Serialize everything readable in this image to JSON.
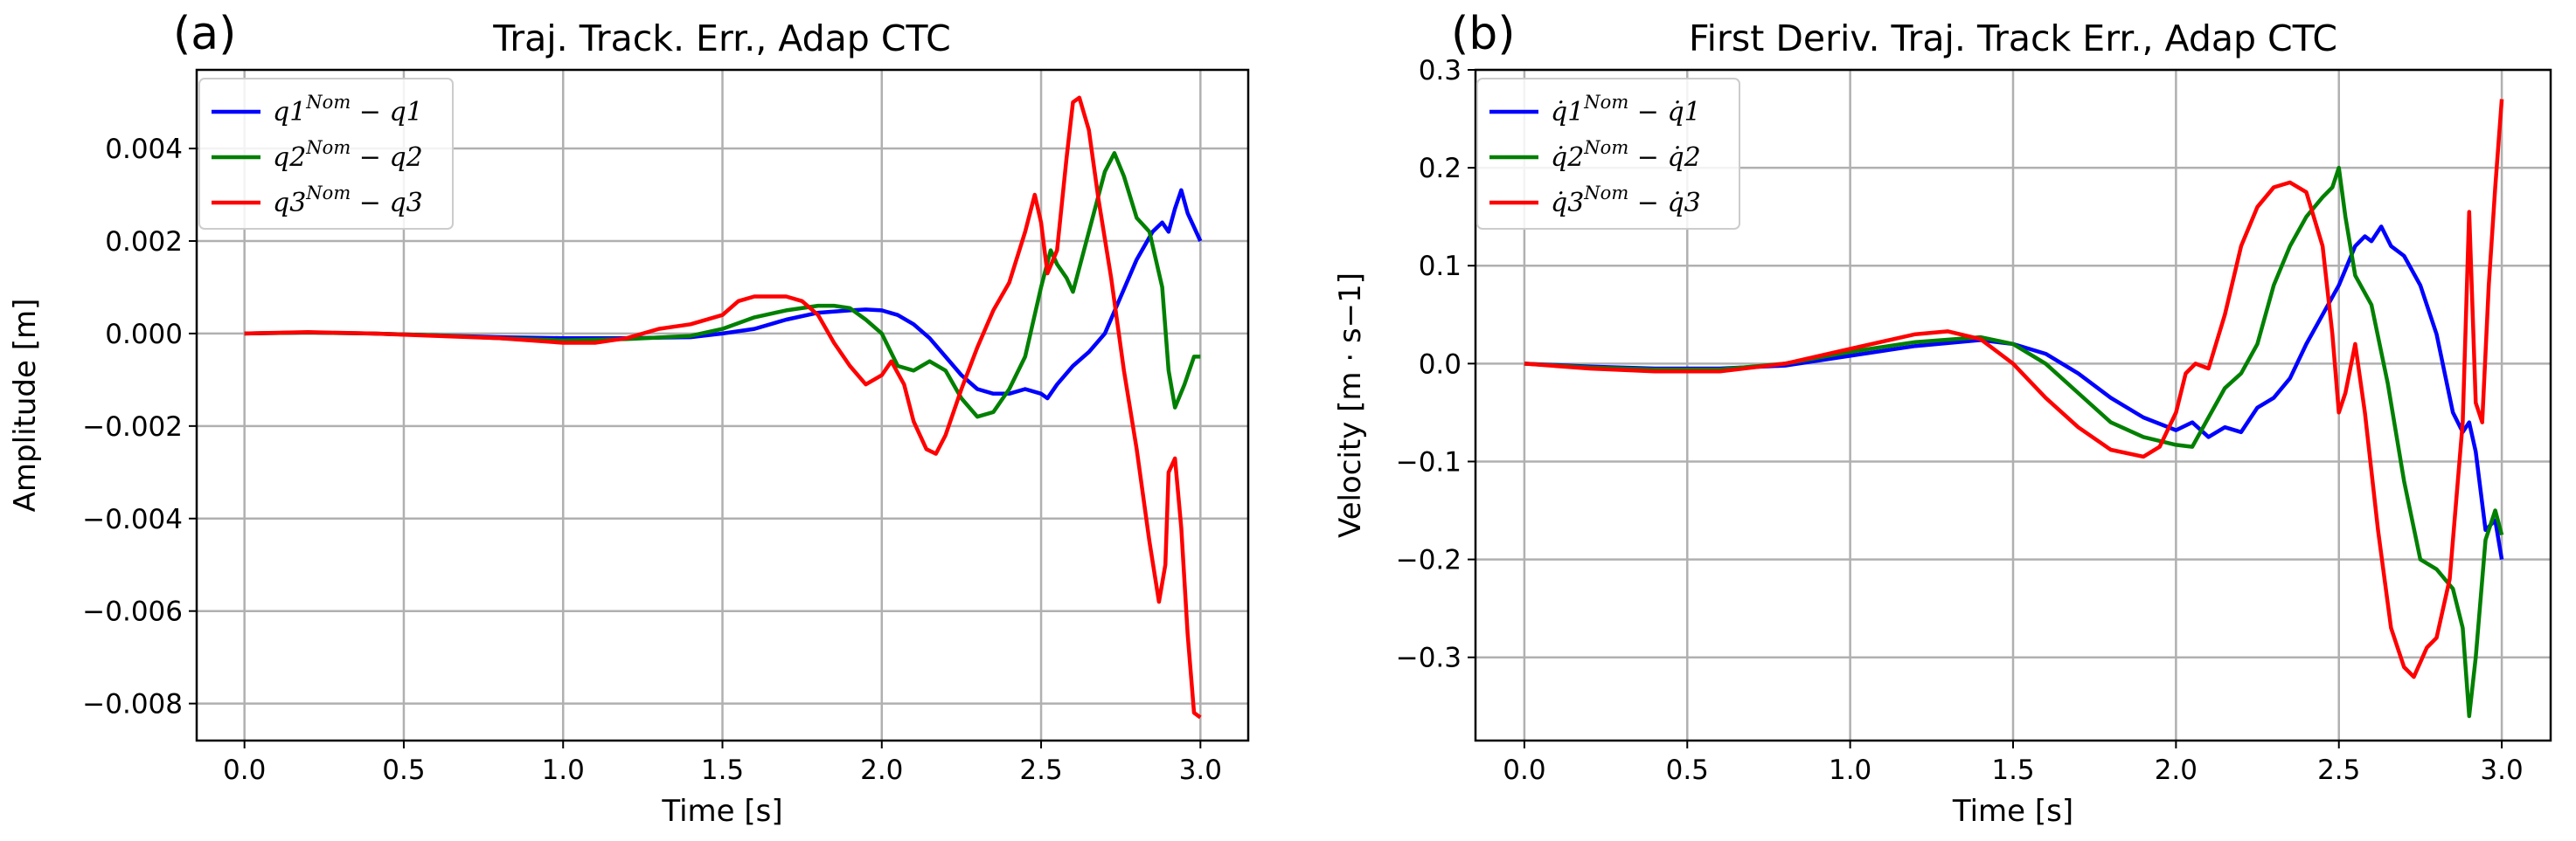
{
  "chart_data": [
    {
      "type": "line",
      "panel_label": "(a)",
      "title": "Traj. Track. Err., Adap  CTC",
      "xlabel": "Time [s]",
      "ylabel": "Amplitude [m]",
      "xlim": [
        -0.15,
        3.15
      ],
      "ylim": [
        -0.0088,
        0.0057
      ],
      "xticks": [
        0,
        0.5,
        1.0,
        1.5,
        2.0,
        2.5,
        3.0
      ],
      "xtick_labels": [
        "0.0",
        "0.5",
        "1.0",
        "1.5",
        "2.0",
        "2.5",
        "3.0"
      ],
      "yticks": [
        -0.008,
        -0.006,
        -0.004,
        -0.002,
        0.0,
        0.002,
        0.004
      ],
      "ytick_labels": [
        "−0.008",
        "−0.006",
        "−0.004",
        "−0.002",
        "0.000",
        "0.002",
        "0.004"
      ],
      "grid": true,
      "legend_position": "top-left",
      "series": [
        {
          "name": "q1",
          "legend": {
            "base": "q1",
            "sup": "Nom",
            "minus": " − ",
            "tail": "q1"
          },
          "color": "#0000ff",
          "x": [
            0.0,
            0.2,
            0.4,
            0.6,
            0.8,
            1.0,
            1.2,
            1.4,
            1.5,
            1.6,
            1.7,
            1.8,
            1.9,
            1.95,
            2.0,
            2.05,
            2.1,
            2.15,
            2.2,
            2.25,
            2.3,
            2.35,
            2.4,
            2.45,
            2.5,
            2.52,
            2.55,
            2.6,
            2.65,
            2.7,
            2.75,
            2.8,
            2.85,
            2.88,
            2.9,
            2.92,
            2.94,
            2.96,
            2.98,
            3.0
          ],
          "y": [
            0.0,
            2e-05,
            0.0,
            -4e-05,
            -8e-05,
            -0.0001,
            -0.0001,
            -8e-05,
            0.0,
            0.0001,
            0.0003,
            0.00045,
            0.0005,
            0.00052,
            0.0005,
            0.0004,
            0.0002,
            -0.0001,
            -0.0005,
            -0.0009,
            -0.0012,
            -0.0013,
            -0.0013,
            -0.0012,
            -0.0013,
            -0.0014,
            -0.0011,
            -0.0007,
            -0.0004,
            0.0,
            0.0008,
            0.0016,
            0.0022,
            0.0024,
            0.0022,
            0.0027,
            0.0031,
            0.0026,
            0.0023,
            0.002
          ]
        },
        {
          "name": "q2",
          "legend": {
            "base": "q2",
            "sup": "Nom",
            "minus": " − ",
            "tail": "q2"
          },
          "color": "#008000",
          "x": [
            0.0,
            0.2,
            0.4,
            0.6,
            0.8,
            1.0,
            1.2,
            1.4,
            1.5,
            1.6,
            1.7,
            1.8,
            1.85,
            1.9,
            1.95,
            2.0,
            2.05,
            2.1,
            2.15,
            2.2,
            2.25,
            2.3,
            2.35,
            2.4,
            2.45,
            2.5,
            2.53,
            2.55,
            2.58,
            2.6,
            2.65,
            2.7,
            2.73,
            2.76,
            2.8,
            2.84,
            2.88,
            2.9,
            2.92,
            2.95,
            2.98,
            3.0
          ],
          "y": [
            0.0,
            2e-05,
            0.0,
            -4e-05,
            -0.0001,
            -0.00015,
            -0.00012,
            -5e-05,
            0.0001,
            0.00035,
            0.0005,
            0.0006,
            0.0006,
            0.00055,
            0.0003,
            0.0,
            -0.0007,
            -0.0008,
            -0.0006,
            -0.0008,
            -0.0014,
            -0.0018,
            -0.0017,
            -0.0012,
            -0.0005,
            0.001,
            0.0018,
            0.0015,
            0.0012,
            0.0009,
            0.0022,
            0.0035,
            0.0039,
            0.0034,
            0.0025,
            0.0022,
            0.001,
            -0.0008,
            -0.0016,
            -0.0011,
            -0.0005,
            -0.0005
          ]
        },
        {
          "name": "q3",
          "legend": {
            "base": "q3",
            "sup": "Nom",
            "minus": " − ",
            "tail": "q3"
          },
          "color": "#ff0000",
          "x": [
            0.0,
            0.2,
            0.4,
            0.6,
            0.8,
            1.0,
            1.1,
            1.2,
            1.3,
            1.4,
            1.5,
            1.55,
            1.6,
            1.65,
            1.7,
            1.75,
            1.8,
            1.85,
            1.9,
            1.95,
            2.0,
            2.03,
            2.07,
            2.1,
            2.14,
            2.17,
            2.2,
            2.25,
            2.3,
            2.35,
            2.4,
            2.45,
            2.48,
            2.5,
            2.52,
            2.55,
            2.58,
            2.6,
            2.62,
            2.65,
            2.68,
            2.72,
            2.76,
            2.8,
            2.84,
            2.87,
            2.89,
            2.9,
            2.92,
            2.94,
            2.96,
            2.98,
            3.0
          ],
          "y": [
            0.0,
            3e-05,
            0.0,
            -5e-05,
            -0.0001,
            -0.0002,
            -0.0002,
            -0.0001,
            0.0001,
            0.0002,
            0.0004,
            0.0007,
            0.0008,
            0.0008,
            0.0008,
            0.0007,
            0.0004,
            -0.0002,
            -0.0007,
            -0.0011,
            -0.0009,
            -0.0006,
            -0.0011,
            -0.0019,
            -0.0025,
            -0.0026,
            -0.0022,
            -0.0012,
            -0.0003,
            0.0005,
            0.0011,
            0.0022,
            0.003,
            0.0024,
            0.0013,
            0.0018,
            0.0038,
            0.005,
            0.0051,
            0.0044,
            0.0029,
            0.0012,
            -0.0008,
            -0.0025,
            -0.0045,
            -0.0058,
            -0.005,
            -0.003,
            -0.0027,
            -0.0042,
            -0.0065,
            -0.0082,
            -0.0083
          ]
        }
      ]
    },
    {
      "type": "line",
      "panel_label": "(b)",
      "title": "First Deriv. Traj. Track Err., Adap  CTC",
      "xlabel": "Time [s]",
      "ylabel": "Velocity [m · s−1]",
      "xlim": [
        -0.15,
        3.15
      ],
      "ylim": [
        -0.385,
        0.3
      ],
      "xticks": [
        0,
        0.5,
        1.0,
        1.5,
        2.0,
        2.5,
        3.0
      ],
      "xtick_labels": [
        "0.0",
        "0.5",
        "1.0",
        "1.5",
        "2.0",
        "2.5",
        "3.0"
      ],
      "yticks": [
        -0.3,
        -0.2,
        -0.1,
        0.0,
        0.1,
        0.2,
        0.3
      ],
      "ytick_labels": [
        "−0.3",
        "−0.2",
        "−0.1",
        "0.0",
        "0.1",
        "0.2",
        "0.3"
      ],
      "grid": true,
      "legend_position": "top-left",
      "series": [
        {
          "name": "dq1",
          "legend": {
            "base": "q̇1",
            "sup": "Nom",
            "minus": " − ",
            "tail": "q̇1"
          },
          "color": "#0000ff",
          "x": [
            0.0,
            0.2,
            0.4,
            0.6,
            0.8,
            1.0,
            1.2,
            1.4,
            1.5,
            1.6,
            1.7,
            1.8,
            1.9,
            2.0,
            2.05,
            2.1,
            2.15,
            2.2,
            2.25,
            2.3,
            2.35,
            2.4,
            2.45,
            2.5,
            2.55,
            2.58,
            2.6,
            2.63,
            2.66,
            2.7,
            2.75,
            2.8,
            2.85,
            2.88,
            2.9,
            2.92,
            2.95,
            2.98,
            3.0
          ],
          "y": [
            0.0,
            -0.003,
            -0.005,
            -0.005,
            -0.002,
            0.008,
            0.018,
            0.024,
            0.02,
            0.01,
            -0.01,
            -0.035,
            -0.055,
            -0.068,
            -0.06,
            -0.075,
            -0.065,
            -0.07,
            -0.045,
            -0.035,
            -0.015,
            0.02,
            0.05,
            0.08,
            0.12,
            0.13,
            0.125,
            0.14,
            0.12,
            0.11,
            0.08,
            0.03,
            -0.05,
            -0.07,
            -0.06,
            -0.09,
            -0.17,
            -0.16,
            -0.2
          ]
        },
        {
          "name": "dq2",
          "legend": {
            "base": "q̇2",
            "sup": "Nom",
            "minus": " − ",
            "tail": "q̇2"
          },
          "color": "#008000",
          "x": [
            0.0,
            0.2,
            0.4,
            0.6,
            0.8,
            1.0,
            1.2,
            1.4,
            1.5,
            1.6,
            1.7,
            1.8,
            1.9,
            2.0,
            2.05,
            2.1,
            2.15,
            2.2,
            2.25,
            2.3,
            2.35,
            2.4,
            2.45,
            2.48,
            2.5,
            2.52,
            2.55,
            2.6,
            2.65,
            2.7,
            2.75,
            2.8,
            2.85,
            2.88,
            2.9,
            2.92,
            2.95,
            2.98,
            3.0
          ],
          "y": [
            0.0,
            -0.004,
            -0.006,
            -0.006,
            0.0,
            0.012,
            0.022,
            0.027,
            0.02,
            0.0,
            -0.03,
            -0.06,
            -0.075,
            -0.083,
            -0.085,
            -0.055,
            -0.025,
            -0.01,
            0.02,
            0.08,
            0.12,
            0.15,
            0.17,
            0.18,
            0.2,
            0.15,
            0.09,
            0.06,
            -0.02,
            -0.12,
            -0.2,
            -0.21,
            -0.23,
            -0.27,
            -0.36,
            -0.3,
            -0.18,
            -0.15,
            -0.175
          ]
        },
        {
          "name": "dq3",
          "legend": {
            "base": "q̇3",
            "sup": "Nom",
            "minus": " − ",
            "tail": "q̇3"
          },
          "color": "#ff0000",
          "x": [
            0.0,
            0.2,
            0.4,
            0.6,
            0.8,
            1.0,
            1.2,
            1.3,
            1.4,
            1.5,
            1.6,
            1.7,
            1.8,
            1.9,
            1.95,
            2.0,
            2.03,
            2.06,
            2.1,
            2.15,
            2.2,
            2.25,
            2.3,
            2.35,
            2.4,
            2.45,
            2.48,
            2.5,
            2.52,
            2.55,
            2.58,
            2.62,
            2.66,
            2.7,
            2.73,
            2.77,
            2.8,
            2.84,
            2.88,
            2.9,
            2.92,
            2.94,
            2.96,
            2.98,
            3.0
          ],
          "y": [
            0.0,
            -0.005,
            -0.008,
            -0.008,
            0.0,
            0.015,
            0.03,
            0.033,
            0.025,
            0.0,
            -0.035,
            -0.065,
            -0.088,
            -0.095,
            -0.085,
            -0.05,
            -0.01,
            0.0,
            -0.005,
            0.05,
            0.12,
            0.16,
            0.18,
            0.185,
            0.175,
            0.12,
            0.03,
            -0.05,
            -0.03,
            0.02,
            -0.05,
            -0.17,
            -0.27,
            -0.31,
            -0.32,
            -0.29,
            -0.28,
            -0.22,
            -0.06,
            0.155,
            -0.04,
            -0.06,
            0.08,
            0.18,
            0.27
          ]
        }
      ]
    }
  ]
}
